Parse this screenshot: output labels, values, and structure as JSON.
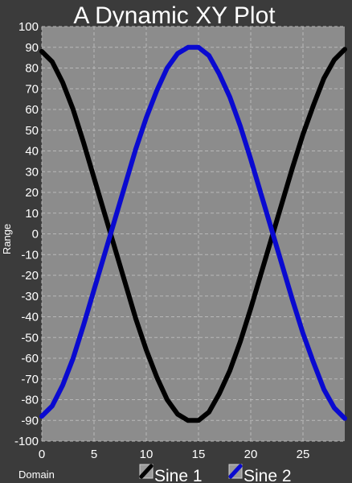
{
  "chart_data": {
    "type": "line",
    "title": "A Dynamic XY Plot",
    "xlabel": "Domain",
    "ylabel": "Range",
    "xlim": [
      0,
      29
    ],
    "ylim": [
      -100,
      100
    ],
    "x_ticks": [
      "0",
      "5",
      "10",
      "15",
      "20",
      "25"
    ],
    "y_ticks": [
      "100",
      "90",
      "80",
      "70",
      "60",
      "50",
      "40",
      "30",
      "20",
      "10",
      "0",
      "-10",
      "-20",
      "-30",
      "-40",
      "-50",
      "-60",
      "-70",
      "-80",
      "-90",
      "-100"
    ],
    "grid": true,
    "legend_position": "bottom",
    "x": [
      0,
      1,
      2,
      3,
      4,
      5,
      6,
      7,
      8,
      9,
      10,
      11,
      12,
      13,
      14,
      15,
      16,
      17,
      18,
      19,
      20,
      21,
      22,
      23,
      24,
      25,
      26,
      27,
      28,
      29
    ],
    "series": [
      {
        "name": "Sine 1",
        "color": "#000000",
        "values": [
          88,
          83,
          73,
          60,
          44,
          27,
          10,
          -7,
          -24,
          -41,
          -56,
          -69,
          -80,
          -87,
          -90,
          -90,
          -86,
          -77,
          -66,
          -52,
          -36,
          -19,
          -2,
          15,
          32,
          48,
          62,
          75,
          84,
          89
        ]
      },
      {
        "name": "Sine 2",
        "color": "#0a0ad0",
        "values": [
          -88,
          -83,
          -73,
          -60,
          -44,
          -27,
          -10,
          7,
          24,
          41,
          56,
          69,
          80,
          87,
          90,
          90,
          86,
          77,
          66,
          52,
          36,
          19,
          2,
          -15,
          -32,
          -48,
          -62,
          -75,
          -84,
          -89
        ]
      }
    ]
  },
  "colors": {
    "background": "#3b3b3b",
    "plot_area": "#8c8c8c",
    "grid": "#b8b8b8"
  }
}
